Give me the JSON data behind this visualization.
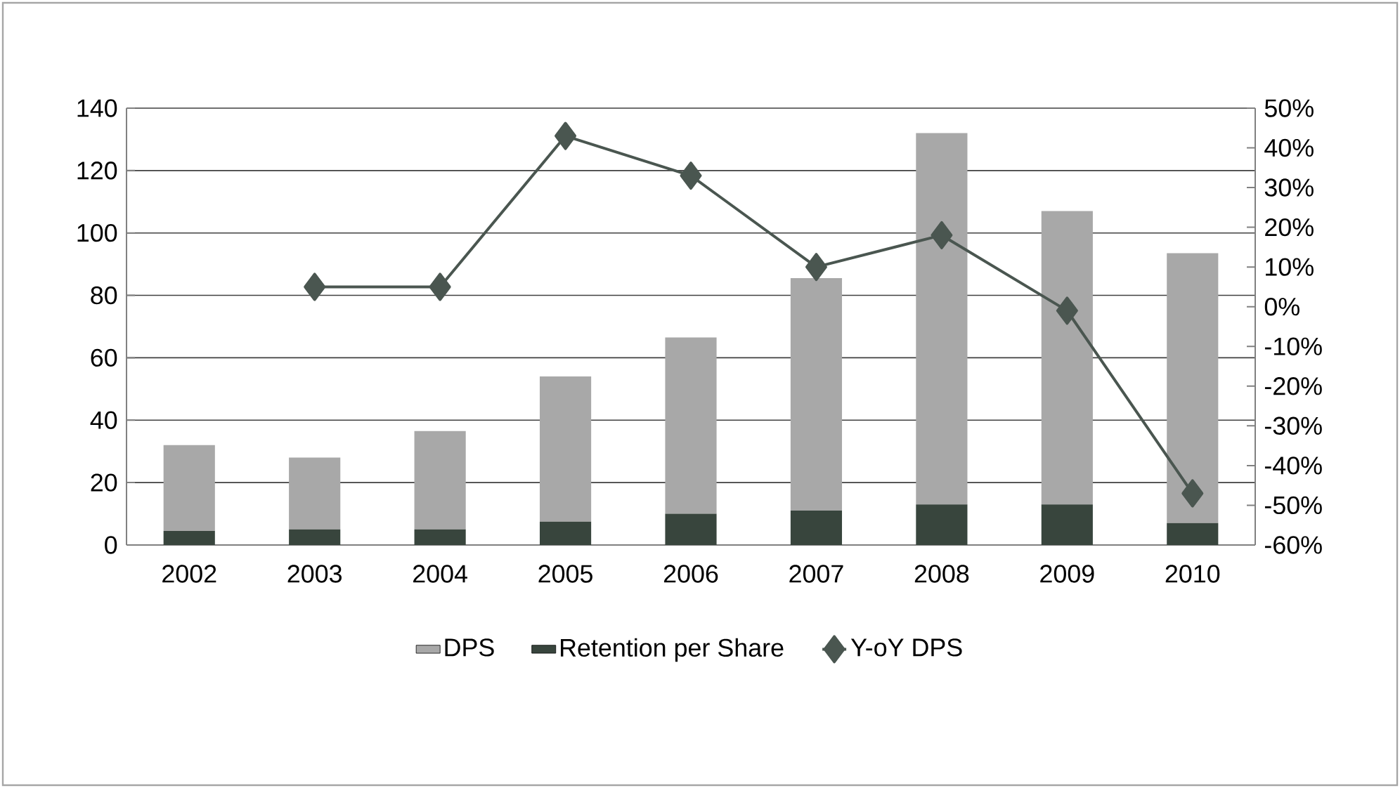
{
  "chart_data": {
    "type": "bar",
    "categories": [
      "2002",
      "2003",
      "2004",
      "2005",
      "2006",
      "2007",
      "2008",
      "2009",
      "2010"
    ],
    "series": [
      {
        "name": "Retention per Share",
        "type": "bar",
        "color": "#38453d",
        "values": [
          4.5,
          5,
          5,
          7.5,
          10,
          11,
          13,
          13,
          7
        ]
      },
      {
        "name": "DPS",
        "type": "bar",
        "color": "#a8a8a8",
        "values": [
          27.5,
          23,
          31.5,
          46.5,
          56.5,
          74.5,
          119,
          94,
          86.5
        ]
      },
      {
        "name": "Y-oY DPS",
        "type": "line",
        "axis": "y2",
        "marker": "diamond",
        "color": "#4a5650",
        "values": [
          null,
          5,
          5,
          43,
          33,
          10,
          18,
          -1,
          -47
        ]
      }
    ],
    "ylim": [
      0,
      140
    ],
    "yticks": [
      0,
      20,
      40,
      60,
      80,
      100,
      120,
      140
    ],
    "y2lim": [
      -60,
      50
    ],
    "y2ticks": [
      {
        "value": -60,
        "label": "-60%"
      },
      {
        "value": -50,
        "label": "-50%"
      },
      {
        "value": -40,
        "label": "-40%"
      },
      {
        "value": -30,
        "label": "-30%"
      },
      {
        "value": -20,
        "label": "-20%"
      },
      {
        "value": -10,
        "label": "-10%"
      },
      {
        "value": 0,
        "label": "0%"
      },
      {
        "value": 10,
        "label": "10%"
      },
      {
        "value": 20,
        "label": "20%"
      },
      {
        "value": 30,
        "label": "30%"
      },
      {
        "value": 40,
        "label": "40%"
      },
      {
        "value": 50,
        "label": "50%"
      }
    ],
    "stacked": true,
    "grid": "y",
    "legend": "bottom"
  }
}
